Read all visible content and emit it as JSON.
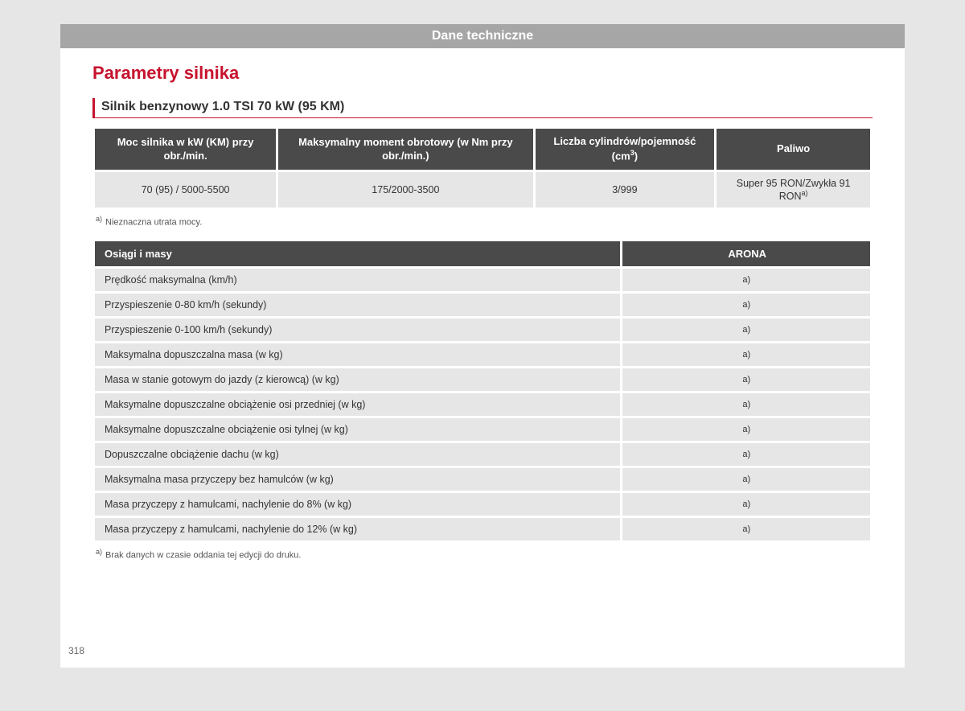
{
  "banner": "Dane techniczne",
  "main_heading": "Parametry silnika",
  "sub_heading": "Silnik benzynowy 1.0 TSI 70 kW (95 KM)",
  "engine_table": {
    "headers": {
      "power": "Moc silnika w kW (KM) przy obr./min.",
      "torque": "Maksymalny moment obrotowy (w Nm przy obr./min.)",
      "cylinders_pre": "Liczba cylindrów/pojemność (cm",
      "cylinders_sup": "3",
      "cylinders_post": ")",
      "fuel": "Paliwo"
    },
    "row": {
      "power": "70 (95) / 5000-5500",
      "torque": "175/2000-3500",
      "cylinders": "3/999",
      "fuel_pre": "Super 95 RON/Zwykła 91 RON",
      "fuel_sup": "a)"
    }
  },
  "footnote1": {
    "sup": "a)",
    "text": "Nieznaczna utrata mocy."
  },
  "perf_table": {
    "header_label": "Osiągi i masy",
    "header_val": "ARONA",
    "rows": [
      {
        "label": "Prędkość maksymalna (km/h)",
        "val": "a)"
      },
      {
        "label": "Przyspieszenie 0-80 km/h (sekundy)",
        "val": "a)"
      },
      {
        "label": "Przyspieszenie 0-100 km/h (sekundy)",
        "val": "a)"
      },
      {
        "label": "Maksymalna dopuszczalna masa (w kg)",
        "val": "a)"
      },
      {
        "label": "Masa w stanie gotowym do jazdy (z kierowcą) (w kg)",
        "val": "a)"
      },
      {
        "label": "Maksymalne dopuszczalne obciążenie osi przedniej (w kg)",
        "val": "a)"
      },
      {
        "label": "Maksymalne dopuszczalne obciążenie osi tylnej (w kg)",
        "val": "a)"
      },
      {
        "label": "Dopuszczalne obciążenie dachu (w kg)",
        "val": "a)"
      },
      {
        "label": "Maksymalna masa przyczepy bez hamulców (w kg)",
        "val": "a)"
      },
      {
        "label": "Masa przyczepy z hamulcami, nachylenie do 8% (w kg)",
        "val": "a)"
      },
      {
        "label": "Masa przyczepy z hamulcami, nachylenie do 12% (w kg)",
        "val": "a)"
      }
    ]
  },
  "footnote2": {
    "sup": "a)",
    "text": "Brak danych w czasie oddania tej edycji do druku."
  },
  "page_number": "318"
}
